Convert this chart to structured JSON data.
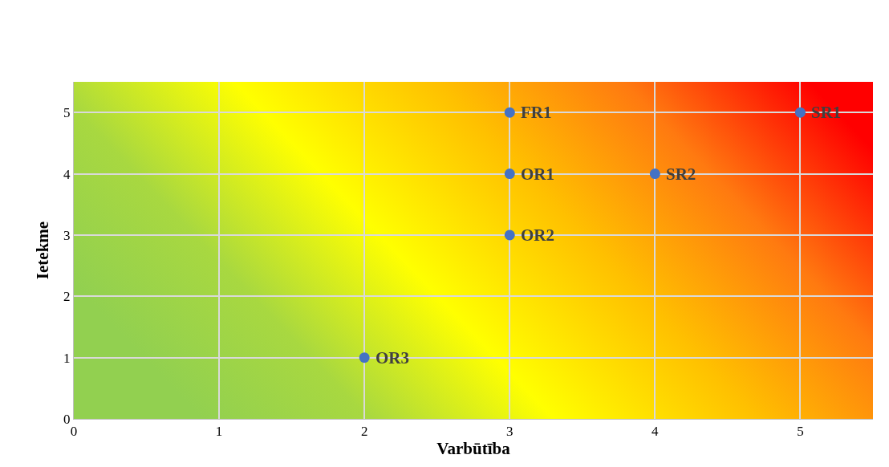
{
  "chart_data": {
    "type": "scatter",
    "xlabel": "Varbūtība",
    "ylabel": "Ietekme",
    "x": [
      3,
      3,
      3,
      2,
      5,
      4
    ],
    "values": [
      5,
      4,
      3,
      1,
      5,
      4
    ],
    "color": "#4472c4",
    "marker": "circle",
    "xlim": [
      0,
      5.5
    ],
    "xticks": [
      0,
      1,
      2,
      3,
      4,
      5
    ],
    "ylim": [
      0,
      5.5
    ],
    "yticks": [
      0,
      1,
      2,
      3,
      4,
      5
    ],
    "grid": true,
    "annotations": [
      {
        "text": "FR1",
        "x": 3,
        "y": 5
      },
      {
        "text": "OR1",
        "x": 3,
        "y": 4
      },
      {
        "text": "OR2",
        "x": 3,
        "y": 3
      },
      {
        "text": "OR3",
        "x": 2,
        "y": 1
      },
      {
        "text": "SR1",
        "x": 5,
        "y": 5
      },
      {
        "text": "SR2",
        "x": 4,
        "y": 4
      }
    ]
  }
}
